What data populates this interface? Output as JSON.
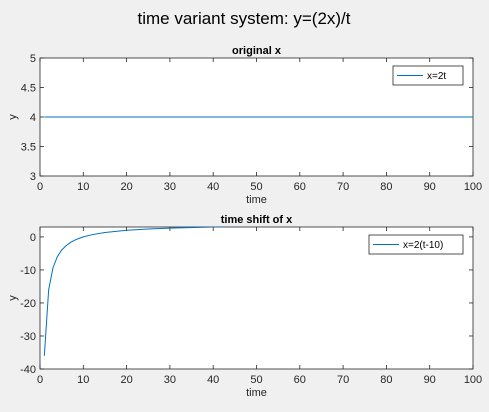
{
  "figure": {
    "title": "time variant system: y=(2x)/t"
  },
  "colors": {
    "background": "#f0f0f0",
    "axes": "#ffffff",
    "series": "#0072bd",
    "axis_line": "#262626"
  },
  "chart_data": [
    {
      "type": "line",
      "title": "original x",
      "xlabel": "time",
      "ylabel": "y",
      "xlim": [
        0,
        100
      ],
      "ylim": [
        3,
        5
      ],
      "xticks": [
        0,
        10,
        20,
        30,
        40,
        50,
        60,
        70,
        80,
        90,
        100
      ],
      "yticks": [
        3,
        3.5,
        4,
        4.5,
        5
      ],
      "grid": false,
      "legend_position": "top-right",
      "series": [
        {
          "name": "x=2t",
          "x": [
            1,
            100
          ],
          "y": [
            4,
            4
          ]
        }
      ]
    },
    {
      "type": "line",
      "title": "time shift of x",
      "xlabel": "time",
      "ylabel": "y",
      "xlim": [
        0,
        100
      ],
      "ylim": [
        -40,
        3
      ],
      "xticks": [
        0,
        10,
        20,
        30,
        40,
        50,
        60,
        70,
        80,
        90,
        100
      ],
      "yticks": [
        -40,
        -30,
        -20,
        -10,
        0
      ],
      "grid": false,
      "legend_position": "top-right",
      "series": [
        {
          "name": "x=2(t-10)",
          "x": [
            1,
            2,
            3,
            4,
            5,
            6,
            7,
            8,
            9,
            10,
            12,
            15,
            20,
            25,
            30,
            40,
            50,
            60,
            70,
            80,
            90,
            100
          ],
          "y": [
            -36,
            -16,
            -9.33,
            -6,
            -4,
            -2.67,
            -1.71,
            -1,
            -0.44,
            0,
            0.67,
            1.33,
            2,
            2.4,
            2.67,
            3,
            3.2,
            3.33,
            3.43,
            3.5,
            3.56,
            3.6
          ]
        }
      ]
    }
  ]
}
